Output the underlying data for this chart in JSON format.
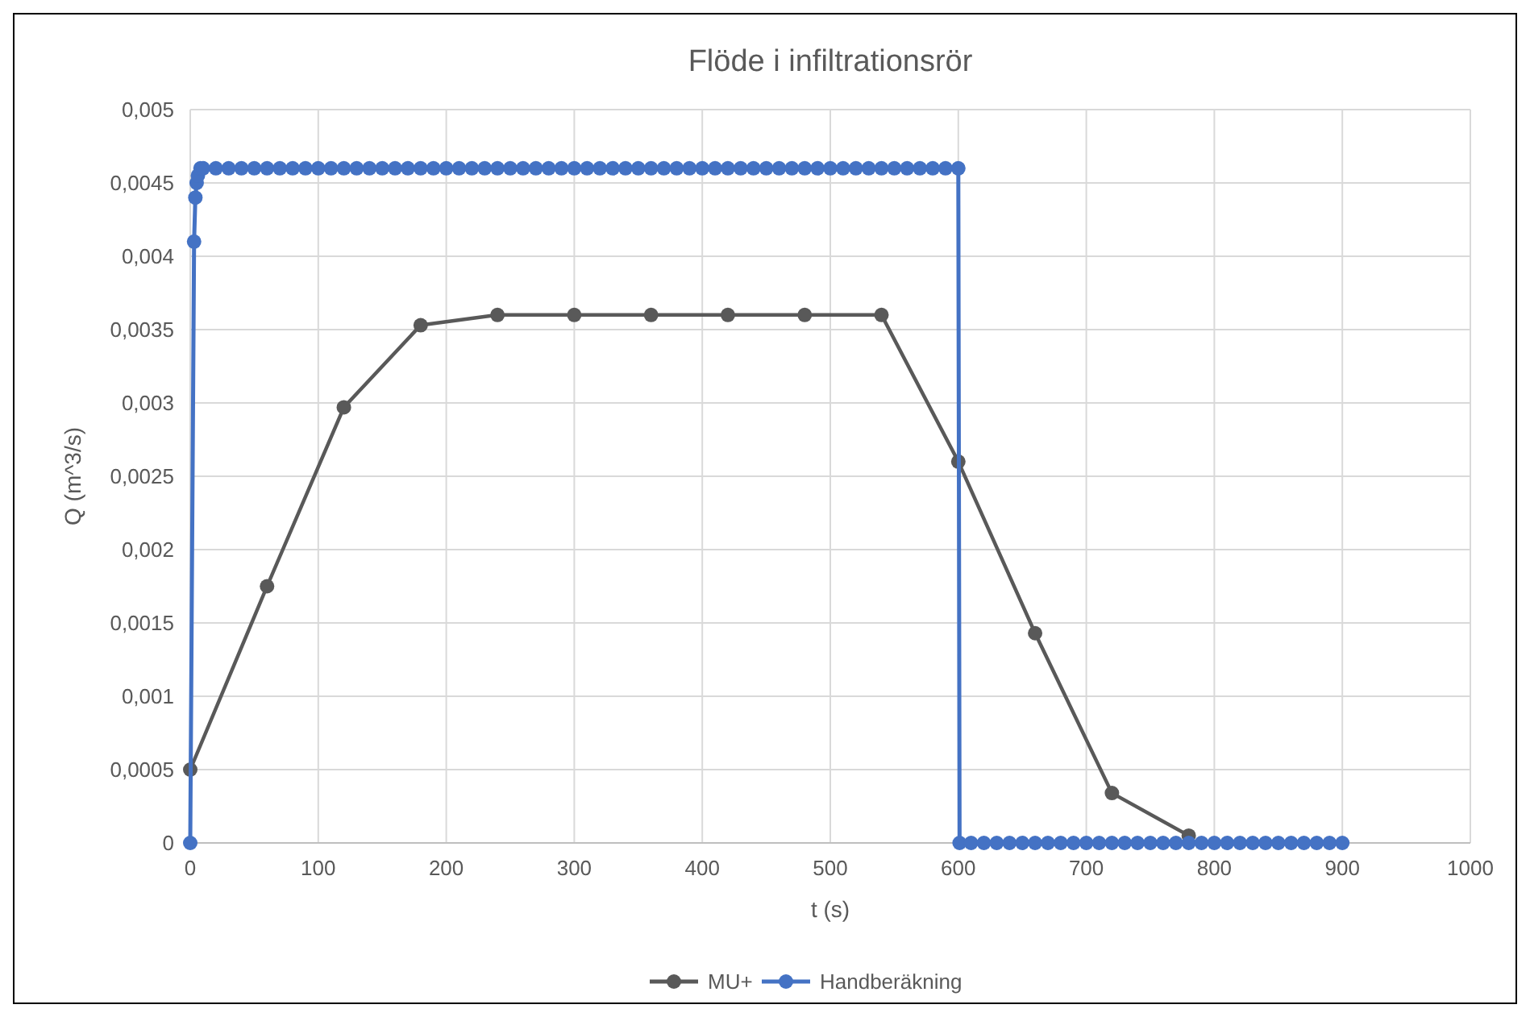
{
  "chart_data": {
    "type": "line",
    "title": "Flöde i infiltrationsrör",
    "xlabel": "t (s)",
    "ylabel": "Q (m^3/s)",
    "xlim": [
      0,
      1000
    ],
    "xticks": [
      0,
      100,
      200,
      300,
      400,
      500,
      600,
      700,
      800,
      900,
      1000
    ],
    "ylim": [
      0,
      0.005
    ],
    "yticks": [
      0,
      {
        "value": 0.0005,
        "label": "0,0005"
      },
      {
        "value": 0.001,
        "label": "0,001"
      },
      {
        "value": 0.0015,
        "label": "0,0015"
      },
      {
        "value": 0.002,
        "label": "0,002"
      },
      {
        "value": 0.0025,
        "label": "0,0025"
      },
      {
        "value": 0.003,
        "label": "0,003"
      },
      {
        "value": 0.0035,
        "label": "0,0035"
      },
      {
        "value": 0.004,
        "label": "0,004"
      },
      {
        "value": 0.0045,
        "label": "0,0045"
      },
      {
        "value": 0.005,
        "label": "0,005"
      }
    ],
    "grid": true,
    "legend": "bottom",
    "marker": "circle",
    "line_style": "solid",
    "series": [
      {
        "name": "MU+",
        "color": "#595959",
        "x": [
          0,
          60,
          120,
          180,
          240,
          300,
          360,
          420,
          480,
          540,
          600,
          660,
          720,
          780
        ],
        "values": [
          0.0005,
          0.00175,
          0.00297,
          0.00353,
          0.0036,
          0.0036,
          0.0036,
          0.0036,
          0.0036,
          0.0036,
          0.0026,
          0.00143,
          0.00034,
          5e-05
        ]
      },
      {
        "name": "Handberäkning",
        "color": "#4472c4",
        "x": [
          0,
          3,
          4,
          5,
          6,
          8,
          10,
          20,
          30,
          40,
          50,
          60,
          70,
          80,
          90,
          100,
          110,
          120,
          130,
          140,
          150,
          160,
          170,
          180,
          190,
          200,
          210,
          220,
          230,
          240,
          250,
          260,
          270,
          280,
          290,
          300,
          310,
          320,
          330,
          340,
          350,
          360,
          370,
          380,
          390,
          400,
          410,
          420,
          430,
          440,
          450,
          460,
          470,
          480,
          490,
          500,
          510,
          520,
          530,
          540,
          550,
          560,
          570,
          580,
          590,
          600,
          601,
          610,
          620,
          630,
          640,
          650,
          660,
          670,
          680,
          690,
          700,
          710,
          720,
          730,
          740,
          750,
          760,
          770,
          780,
          790,
          800,
          810,
          820,
          830,
          840,
          850,
          860,
          870,
          880,
          890,
          900
        ],
        "values": [
          0,
          0.0041,
          0.0044,
          0.0045,
          0.00455,
          0.0046,
          0.0046,
          0.0046,
          0.0046,
          0.0046,
          0.0046,
          0.0046,
          0.0046,
          0.0046,
          0.0046,
          0.0046,
          0.0046,
          0.0046,
          0.0046,
          0.0046,
          0.0046,
          0.0046,
          0.0046,
          0.0046,
          0.0046,
          0.0046,
          0.0046,
          0.0046,
          0.0046,
          0.0046,
          0.0046,
          0.0046,
          0.0046,
          0.0046,
          0.0046,
          0.0046,
          0.0046,
          0.0046,
          0.0046,
          0.0046,
          0.0046,
          0.0046,
          0.0046,
          0.0046,
          0.0046,
          0.0046,
          0.0046,
          0.0046,
          0.0046,
          0.0046,
          0.0046,
          0.0046,
          0.0046,
          0.0046,
          0.0046,
          0.0046,
          0.0046,
          0.0046,
          0.0046,
          0.0046,
          0.0046,
          0.0046,
          0.0046,
          0.0046,
          0.0046,
          0.0046,
          0,
          0,
          0,
          0,
          0,
          0,
          0,
          0,
          0,
          0,
          0,
          0,
          0,
          0,
          0,
          0,
          0,
          0,
          0,
          0,
          0,
          0,
          0,
          0,
          0,
          0,
          0,
          0,
          0,
          0,
          0
        ]
      }
    ]
  }
}
